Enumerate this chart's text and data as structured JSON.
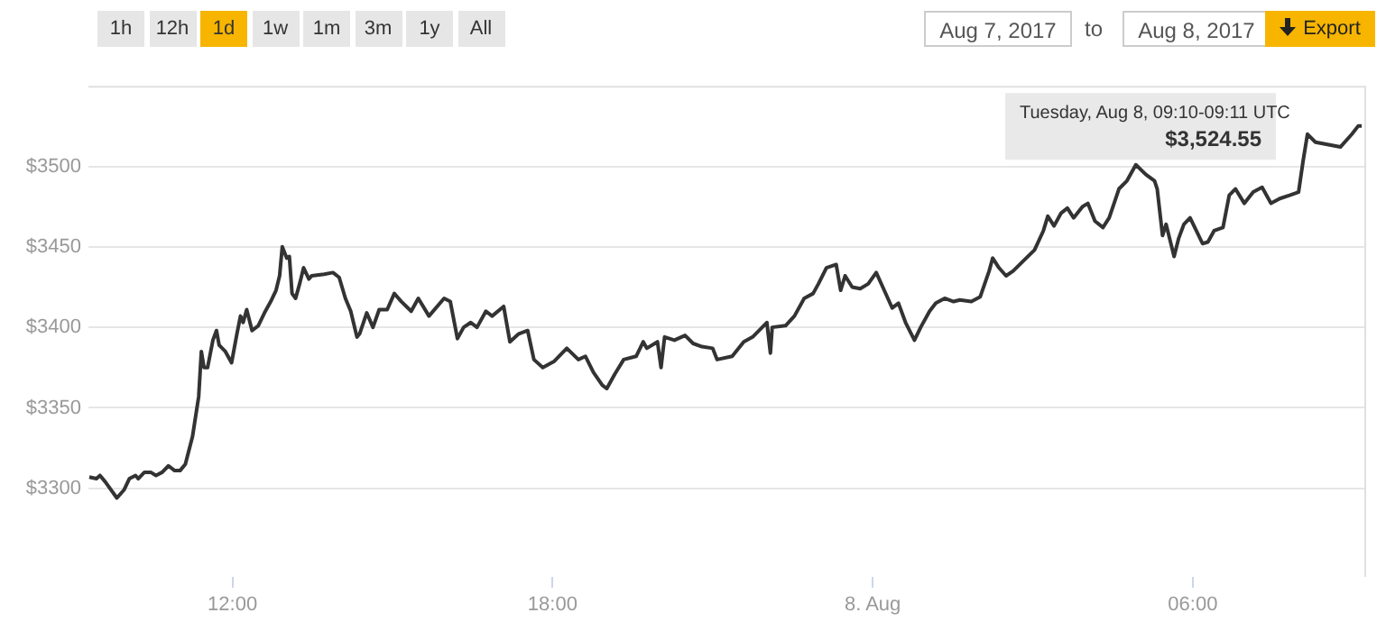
{
  "chart_data": {
    "type": "line",
    "xlim": [
      "2017-08-07T09:18",
      "2017-08-08T09:15"
    ],
    "xticks": [
      {
        "value": "2017-08-07T12:00",
        "label": "12:00"
      },
      {
        "value": "2017-08-07T18:00",
        "label": "18:00"
      },
      {
        "value": "2017-08-08T00:00",
        "label": "8. Aug"
      },
      {
        "value": "2017-08-08T06:00",
        "label": "06:00"
      }
    ],
    "ylim": [
      3245,
      3550
    ],
    "yticks": [
      {
        "value": 3300,
        "label": "$3300"
      },
      {
        "value": 3350,
        "label": "$3350"
      },
      {
        "value": 3400,
        "label": "$3400"
      },
      {
        "value": 3450,
        "label": "$3450"
      },
      {
        "value": 3500,
        "label": "$3500"
      }
    ],
    "grid": "y",
    "legend": false,
    "marker": "none",
    "line_style": "solid",
    "x": [
      "2017-08-07T09:19",
      "2017-08-07T09:27",
      "2017-08-07T09:31",
      "2017-08-07T09:37",
      "2017-08-07T09:50",
      "2017-08-07T09:58",
      "2017-08-07T10:04",
      "2017-08-07T10:11",
      "2017-08-07T10:14",
      "2017-08-07T10:21",
      "2017-08-07T10:28",
      "2017-08-07T10:34",
      "2017-08-07T10:41",
      "2017-08-07T10:48",
      "2017-08-07T10:55",
      "2017-08-07T11:01",
      "2017-08-07T11:07",
      "2017-08-07T11:15",
      "2017-08-07T11:22",
      "2017-08-07T11:25",
      "2017-08-07T11:28",
      "2017-08-07T11:32",
      "2017-08-07T11:38",
      "2017-08-07T11:42",
      "2017-08-07T11:45",
      "2017-08-07T11:52",
      "2017-08-07T11:59",
      "2017-08-07T12:05",
      "2017-08-07T12:09",
      "2017-08-07T12:12",
      "2017-08-07T12:16",
      "2017-08-07T12:22",
      "2017-08-07T12:29",
      "2017-08-07T12:36",
      "2017-08-07T12:43",
      "2017-08-07T12:49",
      "2017-08-07T12:53",
      "2017-08-07T12:56",
      "2017-08-07T13:01",
      "2017-08-07T13:04",
      "2017-08-07T13:07",
      "2017-08-07T13:11",
      "2017-08-07T13:16",
      "2017-08-07T13:20",
      "2017-08-07T13:26",
      "2017-08-07T13:29",
      "2017-08-07T13:43",
      "2017-08-07T13:53",
      "2017-08-07T14:00",
      "2017-08-07T14:07",
      "2017-08-07T14:13",
      "2017-08-07T14:20",
      "2017-08-07T14:23",
      "2017-08-07T14:31",
      "2017-08-07T14:38",
      "2017-08-07T14:45",
      "2017-08-07T14:54",
      "2017-08-07T15:02",
      "2017-08-07T15:10",
      "2017-08-07T15:21",
      "2017-08-07T15:29",
      "2017-08-07T15:41",
      "2017-08-07T15:58",
      "2017-08-07T16:05",
      "2017-08-07T16:13",
      "2017-08-07T16:20",
      "2017-08-07T16:28",
      "2017-08-07T16:35",
      "2017-08-07T16:45",
      "2017-08-07T16:52",
      "2017-08-07T17:05",
      "2017-08-07T17:12",
      "2017-08-07T17:22",
      "2017-08-07T17:32",
      "2017-08-07T17:39",
      "2017-08-07T17:49",
      "2017-08-07T18:02",
      "2017-08-07T18:16",
      "2017-08-07T18:29",
      "2017-08-07T18:37",
      "2017-08-07T18:46",
      "2017-08-07T18:56",
      "2017-08-07T19:01",
      "2017-08-07T19:10",
      "2017-08-07T19:20",
      "2017-08-07T19:34",
      "2017-08-07T19:42",
      "2017-08-07T19:46",
      "2017-08-07T19:58",
      "2017-08-07T20:02",
      "2017-08-07T20:06",
      "2017-08-07T20:17",
      "2017-08-07T20:29",
      "2017-08-07T20:38",
      "2017-08-07T20:48",
      "2017-08-07T21:00",
      "2017-08-07T21:05",
      "2017-08-07T21:22",
      "2017-08-07T21:35",
      "2017-08-07T21:45",
      "2017-08-07T22:01",
      "2017-08-07T22:05",
      "2017-08-07T22:07",
      "2017-08-07T22:22",
      "2017-08-07T22:32",
      "2017-08-07T22:43",
      "2017-08-07T22:53",
      "2017-08-07T22:59",
      "2017-08-07T23:08",
      "2017-08-07T23:19",
      "2017-08-07T23:24",
      "2017-08-07T23:29",
      "2017-08-07T23:37",
      "2017-08-07T23:46",
      "2017-08-07T23:55",
      "2017-08-08T00:04",
      "2017-08-08T00:13",
      "2017-08-08T00:22",
      "2017-08-08T00:29",
      "2017-08-08T00:37",
      "2017-08-08T00:47",
      "2017-08-08T00:54",
      "2017-08-08T01:04",
      "2017-08-08T01:11",
      "2017-08-08T01:21",
      "2017-08-08T01:31",
      "2017-08-08T01:38",
      "2017-08-08T01:51",
      "2017-08-08T02:01",
      "2017-08-08T02:11",
      "2017-08-08T02:15",
      "2017-08-08T02:22",
      "2017-08-08T02:30",
      "2017-08-08T02:38",
      "2017-08-08T02:49",
      "2017-08-08T03:02",
      "2017-08-08T03:12",
      "2017-08-08T03:17",
      "2017-08-08T03:24",
      "2017-08-08T03:32",
      "2017-08-08T03:39",
      "2017-08-08T03:46",
      "2017-08-08T03:56",
      "2017-08-08T04:02",
      "2017-08-08T04:10",
      "2017-08-08T04:19",
      "2017-08-08T04:26",
      "2017-08-08T04:37",
      "2017-08-08T04:46",
      "2017-08-08T04:56",
      "2017-08-08T05:07",
      "2017-08-08T05:17",
      "2017-08-08T05:20",
      "2017-08-08T05:26",
      "2017-08-08T05:30",
      "2017-08-08T05:39",
      "2017-08-08T05:44",
      "2017-08-08T05:50",
      "2017-08-08T05:57",
      "2017-08-08T06:04",
      "2017-08-08T06:11",
      "2017-08-08T06:17",
      "2017-08-08T06:24",
      "2017-08-08T06:34",
      "2017-08-08T06:41",
      "2017-08-08T06:48",
      "2017-08-08T06:58",
      "2017-08-08T07:08",
      "2017-08-08T07:18",
      "2017-08-08T07:28",
      "2017-08-08T07:38",
      "2017-08-08T07:49",
      "2017-08-08T07:59",
      "2017-08-08T08:04",
      "2017-08-08T08:09",
      "2017-08-08T08:18",
      "2017-08-08T08:46",
      "2017-08-08T08:59",
      "2017-08-08T09:06",
      "2017-08-08T09:10"
    ],
    "series": [
      {
        "color": "#333333",
        "values": [
          3307,
          3306,
          3308,
          3304,
          3294,
          3299,
          3306,
          3308,
          3306,
          3310,
          3310,
          3308,
          3310,
          3314,
          3311,
          3311,
          3315,
          3332,
          3357,
          3385,
          3375,
          3375,
          3392,
          3398,
          3389,
          3385,
          3378,
          3396,
          3407,
          3403,
          3411,
          3398,
          3401,
          3409,
          3416,
          3423,
          3432,
          3450,
          3443,
          3444,
          3421,
          3418,
          3428,
          3437,
          3430,
          3432,
          3433,
          3434,
          3431,
          3418,
          3410,
          3394,
          3396,
          3409,
          3400,
          3411,
          3411,
          3421,
          3416,
          3410,
          3418,
          3407,
          3418,
          3416,
          3393,
          3400,
          3403,
          3400,
          3410,
          3407,
          3413,
          3391,
          3396,
          3398,
          3380,
          3375,
          3379,
          3387,
          3380,
          3382,
          3372,
          3364,
          3362,
          3371,
          3380,
          3382,
          3391,
          3387,
          3391,
          3375,
          3394,
          3392,
          3395,
          3390,
          3388,
          3387,
          3380,
          3382,
          3391,
          3394,
          3403,
          3384,
          3400,
          3401,
          3407,
          3418,
          3421,
          3427,
          3437,
          3439,
          3423,
          3432,
          3425,
          3424,
          3427,
          3434,
          3423,
          3412,
          3415,
          3403,
          3392,
          3400,
          3410,
          3415,
          3418,
          3416,
          3417,
          3416,
          3419,
          3435,
          3443,
          3437,
          3432,
          3435,
          3441,
          3448,
          3460,
          3469,
          3463,
          3471,
          3474,
          3468,
          3475,
          3477,
          3466,
          3462,
          3468,
          3486,
          3491,
          3501,
          3495,
          3491,
          3486,
          3457,
          3464,
          3444,
          3455,
          3464,
          3468,
          3460,
          3452,
          3453,
          3460,
          3462,
          3482,
          3486,
          3477,
          3484,
          3487,
          3477,
          3480,
          3482,
          3484,
          3503,
          3520,
          3515,
          3512,
          3520,
          3525,
          3525
        ]
      }
    ],
    "annotations": [
      "Tuesday, Aug 8, 09:10-09:11 UTC",
      "$3,524.55",
      "1h",
      "12h",
      "1d",
      "1w",
      "1m",
      "3m",
      "1y",
      "All",
      "Aug 7, 2017",
      "to",
      "Aug 8, 2017",
      "Export"
    ]
  }
}
